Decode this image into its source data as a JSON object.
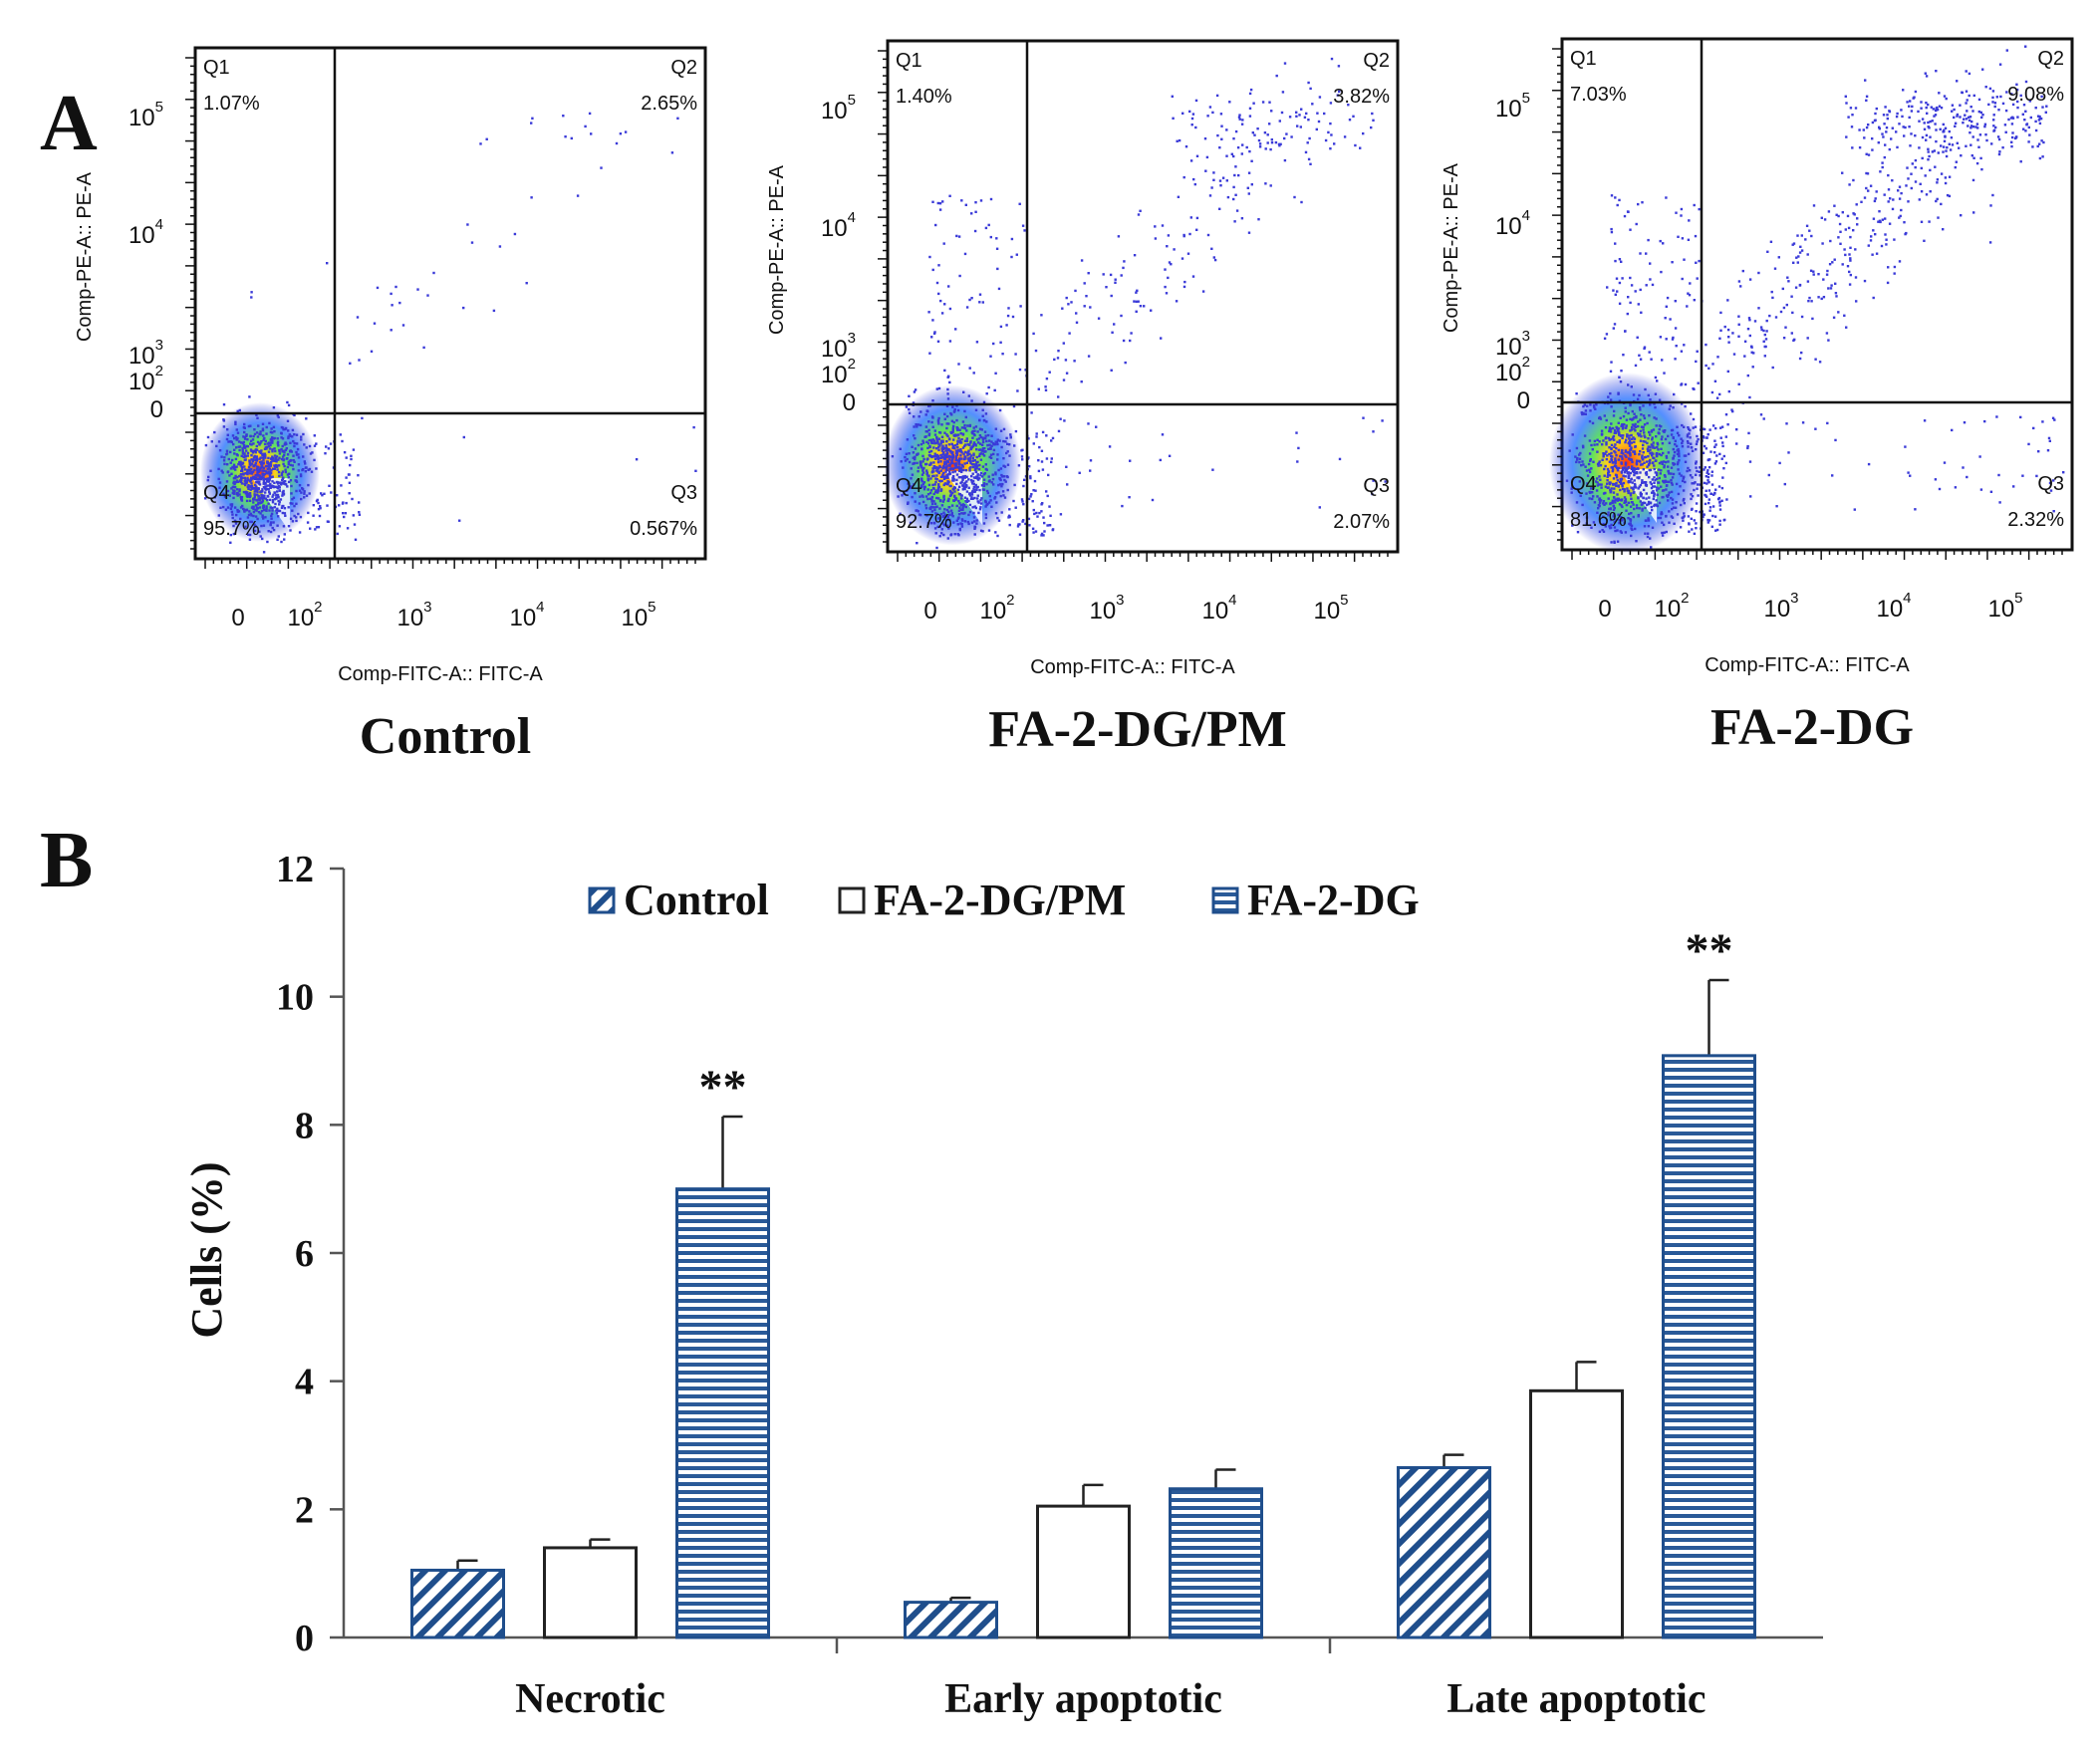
{
  "figure": {
    "label_a": "A",
    "label_b": "B"
  },
  "colors": {
    "navy": "#1f4e8c",
    "light_blue": "#c8d9ee",
    "dot": "#3a3ad8",
    "axis": "#111111"
  },
  "chart_data": [
    {
      "type": "scatter",
      "title": "Control",
      "xlabel": "Comp-FITC-A:: FITC-A",
      "ylabel": "Comp-PE-A:: PE-A",
      "x_ticks": [
        {
          "base": "0",
          "exp": ""
        },
        {
          "base": "10",
          "exp": "2"
        },
        {
          "base": "10",
          "exp": "3"
        },
        {
          "base": "10",
          "exp": "4"
        },
        {
          "base": "10",
          "exp": "5"
        }
      ],
      "y_ticks": [
        {
          "base": "0",
          "exp": ""
        },
        {
          "base": "10",
          "exp": "2"
        },
        {
          "base": "10",
          "exp": "3"
        },
        {
          "base": "10",
          "exp": "4"
        },
        {
          "base": "10",
          "exp": "5"
        }
      ],
      "quadrants": [
        {
          "id": "Q1",
          "value": "1.07%"
        },
        {
          "id": "Q2",
          "value": "2.65%"
        },
        {
          "id": "Q3",
          "value": "0.567%"
        },
        {
          "id": "Q4",
          "value": "95.7%"
        }
      ]
    },
    {
      "type": "scatter",
      "title": "FA-2-DG/PM",
      "xlabel": "Comp-FITC-A:: FITC-A",
      "ylabel": "Comp-PE-A:: PE-A",
      "x_ticks": [
        {
          "base": "0",
          "exp": ""
        },
        {
          "base": "10",
          "exp": "2"
        },
        {
          "base": "10",
          "exp": "3"
        },
        {
          "base": "10",
          "exp": "4"
        },
        {
          "base": "10",
          "exp": "5"
        }
      ],
      "y_ticks": [
        {
          "base": "0",
          "exp": ""
        },
        {
          "base": "10",
          "exp": "2"
        },
        {
          "base": "10",
          "exp": "3"
        },
        {
          "base": "10",
          "exp": "4"
        },
        {
          "base": "10",
          "exp": "5"
        }
      ],
      "quadrants": [
        {
          "id": "Q1",
          "value": "1.40%"
        },
        {
          "id": "Q2",
          "value": "3.82%"
        },
        {
          "id": "Q3",
          "value": "2.07%"
        },
        {
          "id": "Q4",
          "value": "92.7%"
        }
      ]
    },
    {
      "type": "scatter",
      "title": "FA-2-DG",
      "xlabel": "Comp-FITC-A:: FITC-A",
      "ylabel": "Comp-PE-A:: PE-A",
      "x_ticks": [
        {
          "base": "0",
          "exp": ""
        },
        {
          "base": "10",
          "exp": "2"
        },
        {
          "base": "10",
          "exp": "3"
        },
        {
          "base": "10",
          "exp": "4"
        },
        {
          "base": "10",
          "exp": "5"
        }
      ],
      "y_ticks": [
        {
          "base": "0",
          "exp": ""
        },
        {
          "base": "10",
          "exp": "2"
        },
        {
          "base": "10",
          "exp": "3"
        },
        {
          "base": "10",
          "exp": "4"
        },
        {
          "base": "10",
          "exp": "5"
        }
      ],
      "quadrants": [
        {
          "id": "Q1",
          "value": "7.03%"
        },
        {
          "id": "Q2",
          "value": "9.08%"
        },
        {
          "id": "Q3",
          "value": "2.32%"
        },
        {
          "id": "Q4",
          "value": "81.6%"
        }
      ]
    },
    {
      "type": "bar",
      "title": "",
      "xlabel": "",
      "ylabel": "Cells (%)",
      "ylim": [
        0,
        12
      ],
      "yticks": [
        "0",
        "2",
        "4",
        "6",
        "8",
        "10",
        "12"
      ],
      "categories": [
        "Necrotic",
        "Early apoptotic",
        "Late apoptotic"
      ],
      "legend_position": "top-center",
      "series": [
        {
          "name": "Control",
          "pattern": "diagonal",
          "values": [
            1.05,
            0.55,
            2.65
          ],
          "errors": [
            0.15,
            0.07,
            0.2
          ],
          "sig": [
            "",
            "",
            ""
          ]
        },
        {
          "name": "FA-2-DG/PM",
          "pattern": "plain",
          "values": [
            1.4,
            2.05,
            3.85
          ],
          "errors": [
            0.13,
            0.33,
            0.45
          ],
          "sig": [
            "",
            "",
            ""
          ]
        },
        {
          "name": "FA-2-DG",
          "pattern": "horizontal",
          "values": [
            7.0,
            2.32,
            9.08
          ],
          "errors": [
            1.13,
            0.3,
            1.18
          ],
          "sig": [
            "**",
            "",
            "**"
          ]
        }
      ]
    }
  ]
}
